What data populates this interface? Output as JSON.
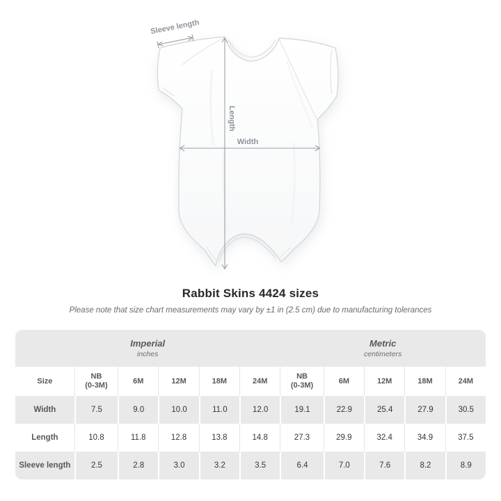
{
  "title": "Rabbit Skins 4424 sizes",
  "subtitle": "Please note that size chart measurements may vary by ±1 in (2.5 cm) due to manufacturing tolerances",
  "diagram": {
    "garment": "infant-bodysuit",
    "labels": {
      "sleeve": "Sleeve length",
      "length": "Length",
      "width": "Width"
    },
    "line_color": "#9aa1a7",
    "label_color": "#8d939a"
  },
  "table": {
    "corner_header": "Size",
    "unit_groups": [
      {
        "label": "Imperial",
        "unit": "inches"
      },
      {
        "label": "Metric",
        "unit": "centimeters"
      }
    ],
    "columns": [
      "NB\n(0-3M)",
      "6M",
      "12M",
      "18M",
      "24M",
      "NB\n(0-3M)",
      "6M",
      "12M",
      "18M",
      "24M"
    ],
    "rows": [
      {
        "label": "Width",
        "values": [
          "7.5",
          "9.0",
          "10.0",
          "11.0",
          "12.0",
          "19.1",
          "22.9",
          "25.4",
          "27.9",
          "30.5"
        ]
      },
      {
        "label": "Length",
        "values": [
          "10.8",
          "11.8",
          "12.8",
          "13.8",
          "14.8",
          "27.3",
          "29.9",
          "32.4",
          "34.9",
          "37.5"
        ]
      },
      {
        "label": "Sleeve length",
        "values": [
          "2.5",
          "2.8",
          "3.0",
          "3.2",
          "3.5",
          "6.4",
          "7.0",
          "7.6",
          "8.2",
          "8.9"
        ]
      }
    ],
    "colors": {
      "stripe_bg": "#e9e9e9",
      "divider_light": "#e3e4e5",
      "header_text": "#54585d",
      "cell_text": "#33373b"
    }
  },
  "chart_data": {
    "type": "table",
    "title": "Rabbit Skins 4424 sizes",
    "note": "Please note that size chart measurements may vary by ±1 in (2.5 cm) due to manufacturing tolerances",
    "unit_groups": [
      {
        "label": "Imperial",
        "unit": "inches",
        "sizes": [
          "NB (0-3M)",
          "6M",
          "12M",
          "18M",
          "24M"
        ]
      },
      {
        "label": "Metric",
        "unit": "centimeters",
        "sizes": [
          "NB (0-3M)",
          "6M",
          "12M",
          "18M",
          "24M"
        ]
      }
    ],
    "measurements": [
      {
        "name": "Width",
        "imperial": [
          7.5,
          9.0,
          10.0,
          11.0,
          12.0
        ],
        "metric": [
          19.1,
          22.9,
          25.4,
          27.9,
          30.5
        ]
      },
      {
        "name": "Length",
        "imperial": [
          10.8,
          11.8,
          12.8,
          13.8,
          14.8
        ],
        "metric": [
          27.3,
          29.9,
          32.4,
          34.9,
          37.5
        ]
      },
      {
        "name": "Sleeve length",
        "imperial": [
          2.5,
          2.8,
          3.0,
          3.2,
          3.5
        ],
        "metric": [
          6.4,
          7.0,
          7.6,
          8.2,
          8.9
        ]
      }
    ]
  }
}
